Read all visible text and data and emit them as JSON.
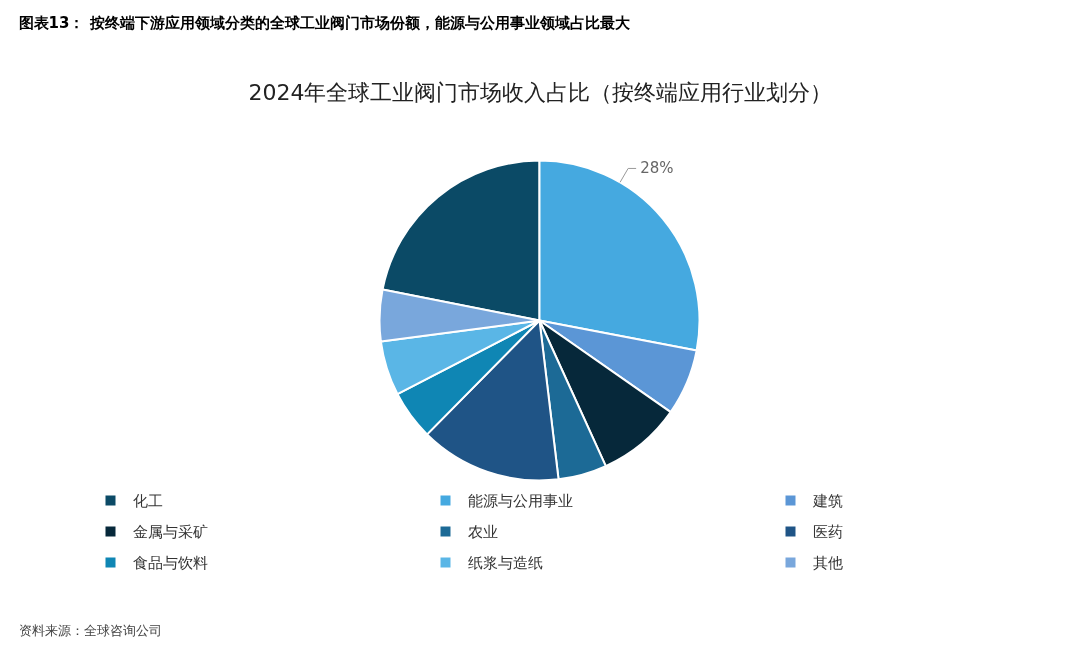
{
  "chart_data": {
    "type": "pie",
    "title": "图表13：  按终端下游应用领域分类的全球工业阀门市场份额，能源与公用事业领域占比最大",
    "subtitle": "2024年全球工业阀门市场收入占比（按终端应用行业划分）",
    "categories": [
      "化工",
      "能源与公用事业",
      "建筑",
      "金属与采矿",
      "农业",
      "医药",
      "食品与饮料",
      "纸浆与造纸",
      "其他"
    ],
    "values": [
      21.9,
      28,
      6.7,
      8.5,
      4.9,
      14.3,
      5,
      5.5,
      5.2
    ],
    "colors": [
      "#0b4a66",
      "#45a9e0",
      "#5b96d6",
      "#06283a",
      "#1c6a96",
      "#1f5486",
      "#0f86b4",
      "#5ab6e6",
      "#79a7dc"
    ],
    "value_labels": [
      null,
      "28%",
      null,
      null,
      null,
      null,
      null,
      null,
      null
    ],
    "legend": "bottom",
    "annotations": [
      "资料来源：全球咨询公司"
    ]
  }
}
